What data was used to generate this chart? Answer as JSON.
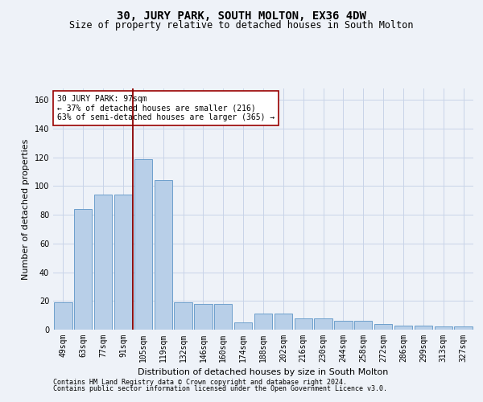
{
  "title": "30, JURY PARK, SOUTH MOLTON, EX36 4DW",
  "subtitle": "Size of property relative to detached houses in South Molton",
  "xlabel": "Distribution of detached houses by size in South Molton",
  "ylabel": "Number of detached properties",
  "categories": [
    "49sqm",
    "63sqm",
    "77sqm",
    "91sqm",
    "105sqm",
    "119sqm",
    "132sqm",
    "146sqm",
    "160sqm",
    "174sqm",
    "188sqm",
    "202sqm",
    "216sqm",
    "230sqm",
    "244sqm",
    "258sqm",
    "272sqm",
    "286sqm",
    "299sqm",
    "313sqm",
    "327sqm"
  ],
  "values": [
    19,
    84,
    94,
    94,
    119,
    104,
    19,
    18,
    18,
    5,
    11,
    11,
    8,
    8,
    6,
    6,
    4,
    3,
    3,
    2,
    2
  ],
  "bar_color": "#b8cfe8",
  "bar_edge_color": "#6da0cc",
  "vline_x": 3.5,
  "vline_color": "#8b0000",
  "annotation_text": "30 JURY PARK: 97sqm\n← 37% of detached houses are smaller (216)\n63% of semi-detached houses are larger (365) →",
  "annotation_box_color": "#ffffff",
  "annotation_box_edge_color": "#990000",
  "ylim": [
    0,
    168
  ],
  "yticks": [
    0,
    20,
    40,
    60,
    80,
    100,
    120,
    140,
    160
  ],
  "grid_color": "#c8d4e8",
  "bg_color": "#eef2f8",
  "footer1": "Contains HM Land Registry data © Crown copyright and database right 2024.",
  "footer2": "Contains public sector information licensed under the Open Government Licence v3.0.",
  "title_fontsize": 10,
  "subtitle_fontsize": 8.5,
  "xlabel_fontsize": 8,
  "ylabel_fontsize": 8,
  "tick_fontsize": 7,
  "annotation_fontsize": 7,
  "footer_fontsize": 6
}
